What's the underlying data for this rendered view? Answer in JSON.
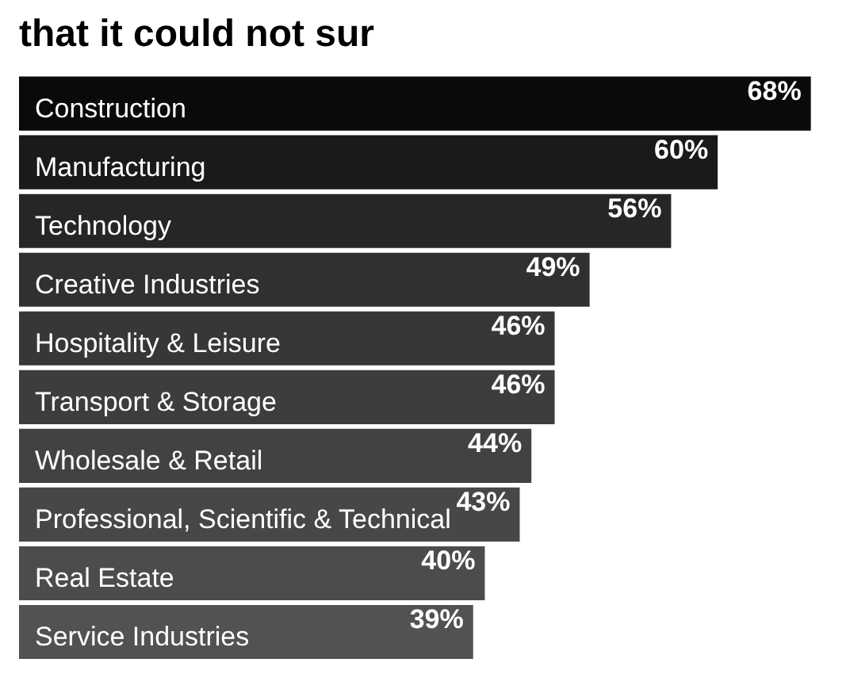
{
  "chart_data": {
    "type": "bar",
    "orientation": "horizontal",
    "title": "that it could not sur",
    "categories": [
      "Construction",
      "Manufacturing",
      "Technology",
      "Creative Industries",
      "Hospitality & Leisure",
      "Transport & Storage",
      "Wholesale & Retail",
      "Professional, Scientific & Technical",
      "Real Estate",
      "Service Industries"
    ],
    "values": [
      68,
      60,
      56,
      49,
      46,
      46,
      44,
      43,
      40,
      39
    ],
    "colors": [
      "#0a0a0a",
      "#1a1a1a",
      "#262626",
      "#303030",
      "#373737",
      "#3d3d3d",
      "#424242",
      "#474747",
      "#4c4c4c",
      "#525252"
    ],
    "value_labels": [
      "68%",
      "60%",
      "56%",
      "49%",
      "46%",
      "46%",
      "44%",
      "43%",
      "40%",
      "39%"
    ],
    "legend": false
  }
}
